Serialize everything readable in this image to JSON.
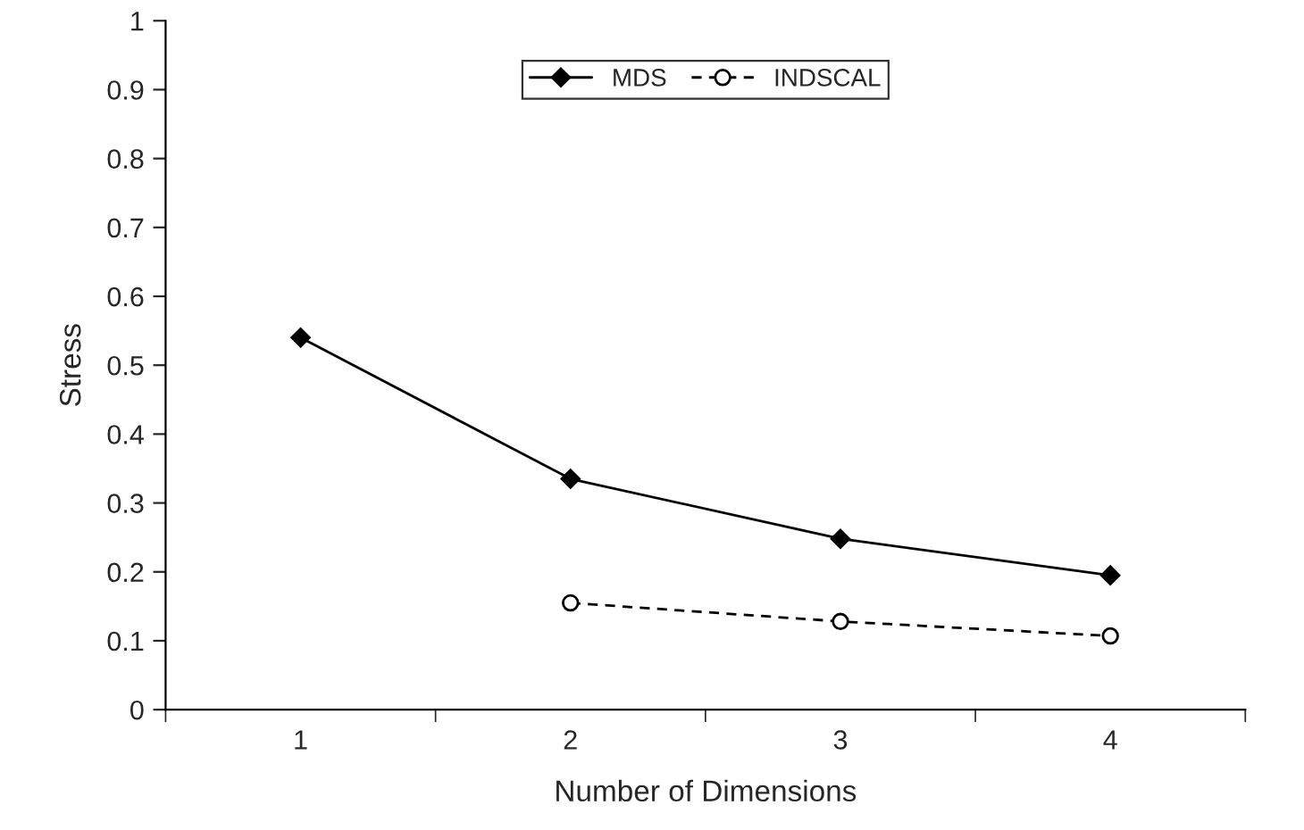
{
  "chart_data": {
    "type": "line",
    "xlabel": "Number of Dimensions",
    "ylabel": "Stress",
    "categories": [
      "1",
      "2",
      "3",
      "4"
    ],
    "series": [
      {
        "name": "MDS",
        "color": "#000000",
        "marker": "diamond",
        "line_style": "solid",
        "values": [
          0.54,
          0.335,
          0.248,
          0.195
        ]
      },
      {
        "name": "INDSCAL",
        "color": "#000000",
        "marker": "circle",
        "line_style": "dashed",
        "values": [
          null,
          0.155,
          0.128,
          0.107
        ]
      }
    ],
    "ylim": [
      0,
      1
    ],
    "yticks": [
      0,
      0.1,
      0.2,
      0.3,
      0.4,
      0.5,
      0.6,
      0.7,
      0.8,
      0.9,
      1
    ],
    "grid": false,
    "legend": "top"
  }
}
